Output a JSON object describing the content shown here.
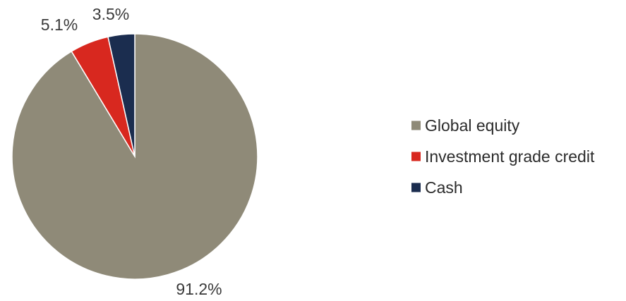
{
  "chart_data": {
    "type": "pie",
    "slices": [
      {
        "label": "Global equity",
        "value": 91.2,
        "value_label": "91.2%",
        "color": "#8f8a78"
      },
      {
        "label": "Investment grade credit",
        "value": 5.1,
        "value_label": "5.1%",
        "color": "#d8281f"
      },
      {
        "label": "Cash",
        "value": 3.5,
        "value_label": "3.5%",
        "color": "#1b2d4f"
      }
    ],
    "start_direction": "top",
    "order": "counterclockwise",
    "legend_position": "right"
  }
}
